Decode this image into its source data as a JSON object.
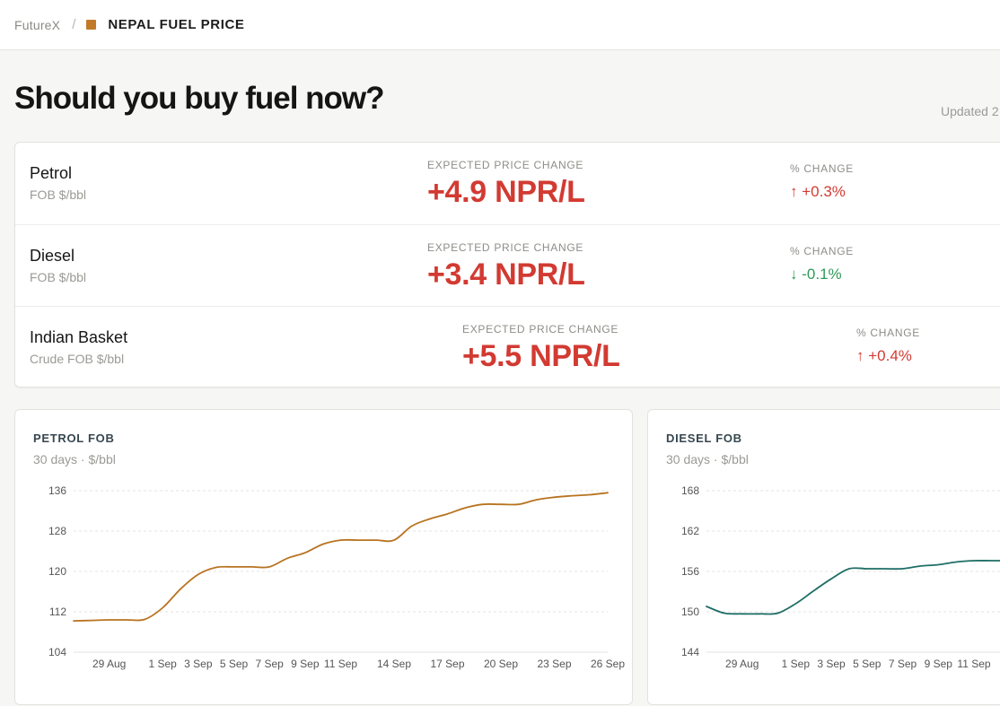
{
  "breadcrumb": {
    "home": "FutureX",
    "separator": "/",
    "current": "NEPAL FUEL PRICE"
  },
  "headline": "Should you buy fuel now?",
  "updated": "Updated 2",
  "prices": [
    {
      "name": "Petrol",
      "unit": "FOB $/bbl",
      "expected_label": "EXPECTED PRICE CHANGE",
      "expected_value": "+4.9 NPR/L",
      "pct_label": "% CHANGE",
      "pct_value": "+0.3%",
      "direction": "up"
    },
    {
      "name": "Diesel",
      "unit": "FOB $/bbl",
      "expected_label": "EXPECTED PRICE CHANGE",
      "expected_value": "+3.4 NPR/L",
      "pct_label": "% CHANGE",
      "pct_value": "-0.1%",
      "direction": "down"
    },
    {
      "name": "Indian Basket",
      "unit": "Crude FOB $/bbl",
      "expected_label": "EXPECTED PRICE CHANGE",
      "expected_value": "+5.5 NPR/L",
      "pct_label": "% CHANGE",
      "pct_value": "+0.4%",
      "direction": "up"
    }
  ],
  "icons": {
    "up": "arrow-up-icon",
    "down": "arrow-down-icon"
  },
  "colors": {
    "accent": "#c27a2a",
    "negative": "#d23a32",
    "positive": "#2f9a58",
    "petrol_line": "#b8731f",
    "diesel_line": "#1f6e66"
  },
  "chart_data": [
    {
      "type": "line",
      "title": "PETROL FOB",
      "subtitle": "30 days · $/bbl",
      "ylim": [
        104,
        136
      ],
      "yticks": [
        104,
        112,
        120,
        128,
        136
      ],
      "xlim": [
        "2025-08-27",
        "2025-09-26"
      ],
      "xtick_labels": [
        "29 Aug",
        "1 Sep",
        "3 Sep",
        "5 Sep",
        "7 Sep",
        "9 Sep",
        "11 Sep",
        "14 Sep",
        "17 Sep",
        "20 Sep",
        "23 Sep",
        "26 Sep"
      ],
      "xtick_dates": [
        "2025-08-29",
        "2025-09-01",
        "2025-09-03",
        "2025-09-05",
        "2025-09-07",
        "2025-09-09",
        "2025-09-11",
        "2025-09-14",
        "2025-09-17",
        "2025-09-20",
        "2025-09-23",
        "2025-09-26"
      ],
      "grid": true,
      "series": [
        {
          "color": "#b8731f",
          "x": [
            "2025-08-27",
            "2025-08-28",
            "2025-08-29",
            "2025-08-30",
            "2025-08-31",
            "2025-09-01",
            "2025-09-02",
            "2025-09-03",
            "2025-09-04",
            "2025-09-05",
            "2025-09-06",
            "2025-09-07",
            "2025-09-08",
            "2025-09-09",
            "2025-09-10",
            "2025-09-11",
            "2025-09-12",
            "2025-09-13",
            "2025-09-14",
            "2025-09-15",
            "2025-09-16",
            "2025-09-17",
            "2025-09-18",
            "2025-09-19",
            "2025-09-20",
            "2025-09-21",
            "2025-09-22",
            "2025-09-23",
            "2025-09-24",
            "2025-09-25",
            "2025-09-26"
          ],
          "y": [
            110.2,
            110.3,
            110.4,
            110.4,
            110.5,
            112.8,
            116.5,
            119.4,
            120.8,
            120.9,
            120.9,
            120.9,
            122.6,
            123.7,
            125.4,
            126.2,
            126.2,
            126.2,
            126.2,
            129.0,
            130.4,
            131.4,
            132.6,
            133.3,
            133.3,
            133.3,
            134.2,
            134.7,
            135.0,
            135.2,
            135.6
          ]
        }
      ]
    },
    {
      "type": "line",
      "title": "DIESEL FOB",
      "subtitle": "30 days · $/bbl",
      "ylim": [
        144,
        168
      ],
      "yticks": [
        144,
        150,
        156,
        162,
        168
      ],
      "xlim": [
        "2025-08-27",
        "2025-09-26"
      ],
      "xtick_labels": [
        "29 Aug",
        "1 Sep",
        "3 Sep",
        "5 Sep",
        "7 Sep",
        "9 Sep",
        "11 Sep"
      ],
      "xtick_dates": [
        "2025-08-29",
        "2025-09-01",
        "2025-09-03",
        "2025-09-05",
        "2025-09-07",
        "2025-09-09",
        "2025-09-11"
      ],
      "grid": true,
      "series": [
        {
          "color": "#1f6e66",
          "x": [
            "2025-08-27",
            "2025-08-28",
            "2025-08-29",
            "2025-08-30",
            "2025-08-31",
            "2025-09-01",
            "2025-09-02",
            "2025-09-03",
            "2025-09-04",
            "2025-09-05",
            "2025-09-06",
            "2025-09-07",
            "2025-09-08",
            "2025-09-09",
            "2025-09-10",
            "2025-09-11",
            "2025-09-12",
            "2025-09-13",
            "2025-09-14",
            "2025-09-15",
            "2025-09-16",
            "2025-09-17",
            "2025-09-18",
            "2025-09-19",
            "2025-09-20",
            "2025-09-21",
            "2025-09-22",
            "2025-09-23",
            "2025-09-24",
            "2025-09-25",
            "2025-09-26"
          ],
          "y": [
            150.8,
            149.8,
            149.7,
            149.7,
            149.8,
            151.2,
            153.1,
            154.9,
            156.4,
            156.4,
            156.4,
            156.4,
            156.8,
            157.0,
            157.4,
            157.6,
            157.6,
            157.6,
            157.6,
            157.6,
            157.6,
            157.6,
            157.6,
            157.6,
            157.6,
            157.6,
            157.6,
            157.6,
            157.6,
            157.6,
            157.6
          ]
        }
      ]
    }
  ]
}
